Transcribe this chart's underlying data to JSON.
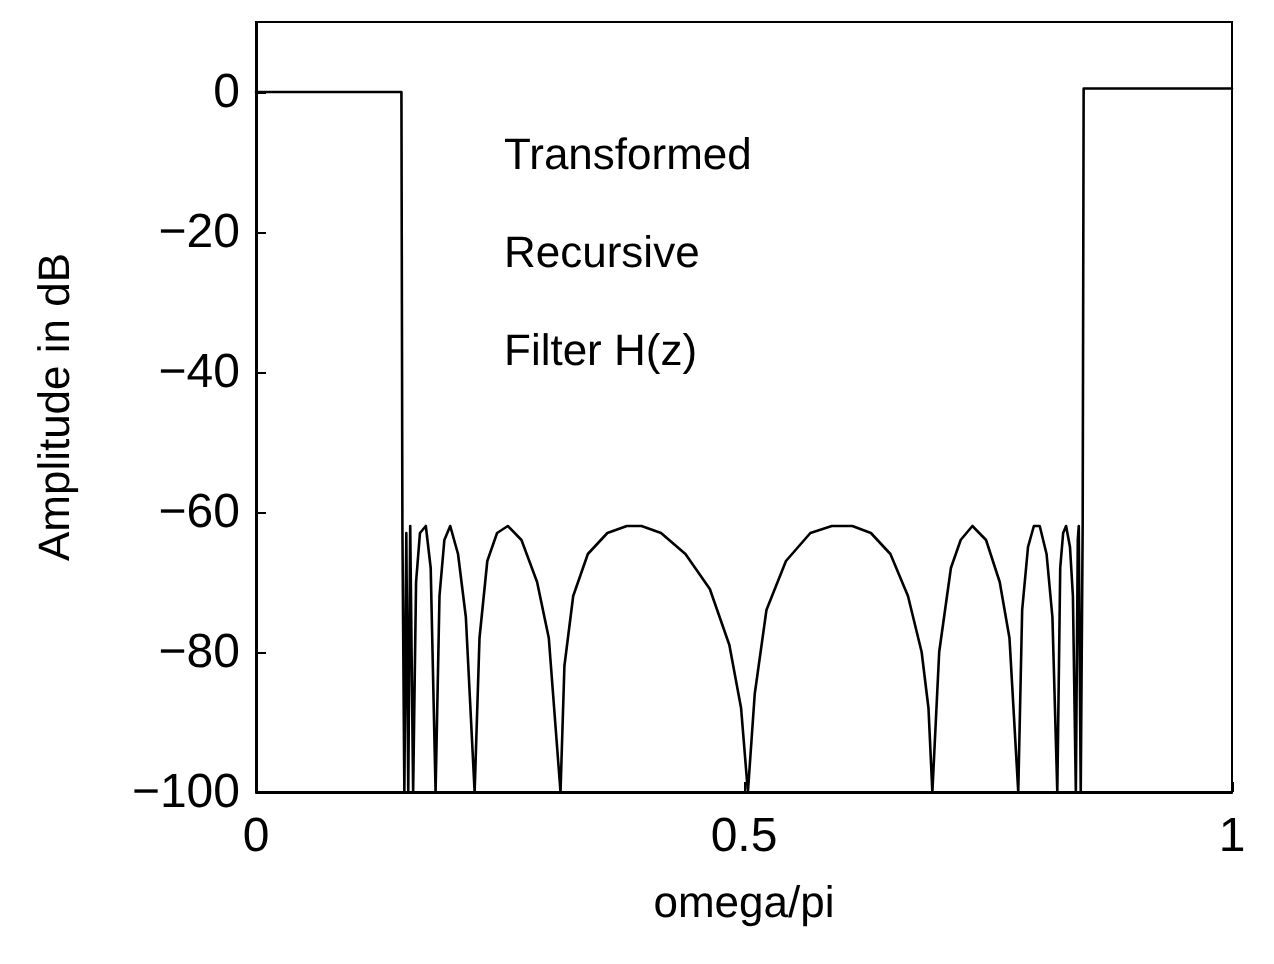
{
  "chart_data": {
    "type": "line",
    "xlabel": "omega/pi",
    "ylabel": "Amplitude in dB",
    "annotations": [
      "Transformed",
      "Recursive",
      "Filter H(z)"
    ],
    "x": [
      0,
      0.149,
      0.15,
      0.152,
      0.154,
      0.156,
      0.158,
      0.161,
      0.164,
      0.168,
      0.174,
      0.179,
      0.184,
      0.188,
      0.193,
      0.199,
      0.207,
      0.215,
      0.224,
      0.229,
      0.237,
      0.247,
      0.258,
      0.272,
      0.288,
      0.3,
      0.312,
      0.316,
      0.325,
      0.34,
      0.36,
      0.38,
      0.395,
      0.415,
      0.44,
      0.465,
      0.485,
      0.497,
      0.504,
      0.511,
      0.523,
      0.543,
      0.568,
      0.59,
      0.611,
      0.63,
      0.65,
      0.668,
      0.682,
      0.689,
      0.693,
      0.7,
      0.712,
      0.722,
      0.734,
      0.748,
      0.762,
      0.772,
      0.781,
      0.785,
      0.791,
      0.797,
      0.803,
      0.81,
      0.816,
      0.821,
      0.824,
      0.827,
      0.83,
      0.834,
      0.837,
      0.84,
      0.842,
      0.843,
      0.845,
      0.847,
      0.848,
      1
    ],
    "series": [
      {
        "color": "#000000",
        "values": [
          0,
          0,
          -62,
          -100,
          -63,
          -100,
          -62,
          -100,
          -70,
          -63,
          -62,
          -68,
          -100,
          -72,
          -64,
          -62,
          -66,
          -75,
          -100,
          -78,
          -67,
          -63,
          -62,
          -64,
          -70,
          -78,
          -100,
          -82,
          -72,
          -66,
          -63,
          -62,
          -62,
          -63,
          -66,
          -71,
          -79,
          -88,
          -100,
          -86,
          -74,
          -67,
          -63,
          -62,
          -62,
          -63,
          -66,
          -72,
          -80,
          -88,
          -100,
          -80,
          -68,
          -64,
          -62,
          -64,
          -70,
          -78,
          -100,
          -74,
          -65,
          -62,
          -62,
          -66,
          -75,
          -100,
          -68,
          -63,
          -62,
          -65,
          -72,
          -100,
          -64,
          -62,
          -100,
          -62,
          0.5,
          0.5
        ]
      }
    ],
    "xlim": [
      0,
      1
    ],
    "xticks": [
      0,
      0.5,
      1
    ],
    "ylim": [
      -100,
      10
    ],
    "yticks": [
      0,
      -20,
      -40,
      -60,
      -80,
      -100
    ],
    "grid": false,
    "marker": "none",
    "line_style": "solid"
  }
}
